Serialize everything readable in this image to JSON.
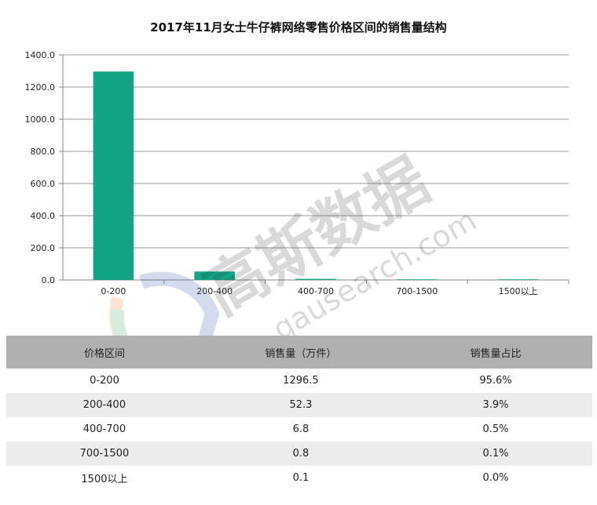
{
  "chart_data": {
    "type": "bar",
    "title": "2017年11月女士牛仔裤网络零售价格区间的销售量结构",
    "categories": [
      "0-200",
      "200-400",
      "400-700",
      "700-1500",
      "1500以上"
    ],
    "values": [
      1296.5,
      52.3,
      6.8,
      0.8,
      0.1
    ],
    "ylim": [
      0,
      1400
    ],
    "yticks": [
      "0.0",
      "200.0",
      "400.0",
      "600.0",
      "800.0",
      "1000.0",
      "1200.0",
      "1400.0"
    ],
    "xlabel": "",
    "ylabel": "",
    "grid": true,
    "bar_color": "#12a585"
  },
  "watermark": {
    "text_cn": "高斯数据",
    "text_en": "gausearch.com"
  },
  "table": {
    "headers": [
      "价格区间",
      "销售量（万件）",
      "销售量占比"
    ],
    "rows": [
      [
        "0-200",
        "1296.5",
        "95.6%"
      ],
      [
        "200-400",
        "52.3",
        "3.9%"
      ],
      [
        "400-700",
        "6.8",
        "0.5%"
      ],
      [
        "700-1500",
        "0.8",
        "0.1%"
      ],
      [
        "1500以上",
        "0.1",
        "0.0%"
      ]
    ]
  }
}
